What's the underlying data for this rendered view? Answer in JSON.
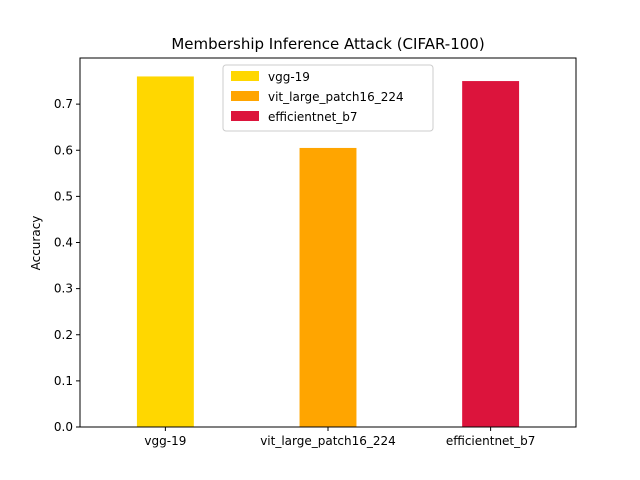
{
  "chart_data": {
    "type": "bar",
    "title": "Membership Inference Attack (CIFAR-100)",
    "xlabel": "",
    "ylabel": "Accuracy",
    "categories": [
      "vgg-19",
      "vit_large_patch16_224",
      "efficientnet_b7"
    ],
    "values": [
      0.76,
      0.605,
      0.75
    ],
    "colors": [
      "#FFD700",
      "#FFA500",
      "#DC143C"
    ],
    "ylim": [
      0,
      0.8
    ],
    "yticks": [
      0.0,
      0.1,
      0.2,
      0.3,
      0.4,
      0.5,
      0.6,
      0.7
    ],
    "ytick_labels": [
      "0.0",
      "0.1",
      "0.2",
      "0.3",
      "0.4",
      "0.5",
      "0.6",
      "0.7"
    ],
    "grid": false,
    "legend": {
      "placement": "top-center",
      "entries": [
        "vgg-19",
        "vit_large_patch16_224",
        "efficientnet_b7"
      ]
    }
  }
}
